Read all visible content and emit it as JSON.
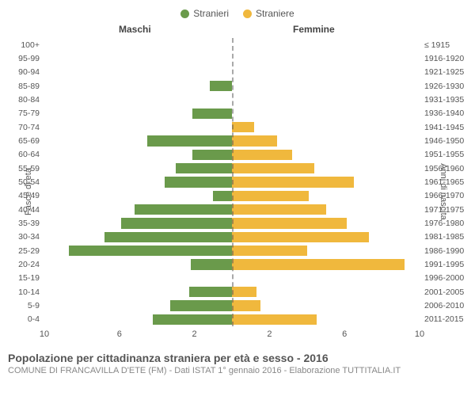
{
  "legend": {
    "male": {
      "label": "Stranieri",
      "color": "#6a9a4b"
    },
    "female": {
      "label": "Straniere",
      "color": "#f0b83d"
    }
  },
  "header": {
    "male": "Maschi",
    "female": "Femmine"
  },
  "yaxis": {
    "left_title": "Fasce di età",
    "right_title": "Anni di nascita"
  },
  "xaxis": {
    "max": 10,
    "ticks_left": [
      10,
      6,
      2
    ],
    "ticks_right": [
      2,
      6,
      10
    ]
  },
  "chart": {
    "type": "population-pyramid",
    "background_color": "#ffffff",
    "centerline_color": "#555555",
    "bar_male_color": "#6a9a4b",
    "bar_female_color": "#f0b83d",
    "bar_height_pct": 76,
    "font_size_axis": 10.5,
    "font_size_title": 14,
    "font_size_subtitle": 11,
    "rows": [
      {
        "age": "0-4",
        "birth": "2011-2015",
        "male": 4.2,
        "female": 4.5
      },
      {
        "age": "5-9",
        "birth": "2006-2010",
        "male": 3.3,
        "female": 1.5
      },
      {
        "age": "10-14",
        "birth": "2001-2005",
        "male": 2.3,
        "female": 1.3
      },
      {
        "age": "15-19",
        "birth": "1996-2000",
        "male": 0,
        "female": 0
      },
      {
        "age": "20-24",
        "birth": "1991-1995",
        "male": 2.2,
        "female": 9.2
      },
      {
        "age": "25-29",
        "birth": "1986-1990",
        "male": 8.7,
        "female": 4.0
      },
      {
        "age": "30-34",
        "birth": "1981-1985",
        "male": 6.8,
        "female": 7.3
      },
      {
        "age": "35-39",
        "birth": "1976-1980",
        "male": 5.9,
        "female": 6.1
      },
      {
        "age": "40-44",
        "birth": "1971-1975",
        "male": 5.2,
        "female": 5.0
      },
      {
        "age": "45-49",
        "birth": "1966-1970",
        "male": 1.0,
        "female": 4.1
      },
      {
        "age": "50-54",
        "birth": "1961-1965",
        "male": 3.6,
        "female": 6.5
      },
      {
        "age": "55-59",
        "birth": "1956-1960",
        "male": 3.0,
        "female": 4.4
      },
      {
        "age": "60-64",
        "birth": "1951-1955",
        "male": 2.1,
        "female": 3.2
      },
      {
        "age": "65-69",
        "birth": "1946-1950",
        "male": 4.5,
        "female": 2.4
      },
      {
        "age": "70-74",
        "birth": "1941-1945",
        "male": 0,
        "female": 1.2
      },
      {
        "age": "75-79",
        "birth": "1936-1940",
        "male": 2.1,
        "female": 0
      },
      {
        "age": "80-84",
        "birth": "1931-1935",
        "male": 0,
        "female": 0
      },
      {
        "age": "85-89",
        "birth": "1926-1930",
        "male": 1.2,
        "female": 0
      },
      {
        "age": "90-94",
        "birth": "1921-1925",
        "male": 0,
        "female": 0
      },
      {
        "age": "95-99",
        "birth": "1916-1920",
        "male": 0,
        "female": 0
      },
      {
        "age": "100+",
        "birth": "≤ 1915",
        "male": 0,
        "female": 0
      }
    ]
  },
  "footer": {
    "title": "Popolazione per cittadinanza straniera per età e sesso - 2016",
    "subtitle": "COMUNE DI FRANCAVILLA D'ETE (FM) - Dati ISTAT 1° gennaio 2016 - Elaborazione TUTTITALIA.IT"
  }
}
